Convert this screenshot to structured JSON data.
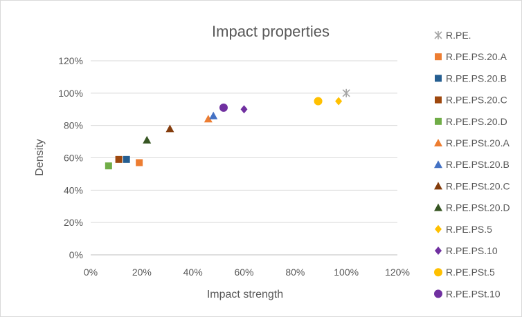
{
  "chart_data": {
    "type": "scatter",
    "title": "Impact properties",
    "xlabel": "Impact strength",
    "ylabel": "Density",
    "xlim": [
      0,
      1.2
    ],
    "ylim": [
      0,
      1.2
    ],
    "x_ticks": [
      "0%",
      "20%",
      "40%",
      "60%",
      "80%",
      "100%",
      "120%"
    ],
    "y_ticks": [
      "0%",
      "20%",
      "40%",
      "60%",
      "80%",
      "100%",
      "120%"
    ],
    "grid": "horizontal",
    "legend_position": "right",
    "series": [
      {
        "name": "R.PE.",
        "marker": "star",
        "color": "#a5a5a5",
        "points": [
          [
            1.0,
            1.0
          ]
        ]
      },
      {
        "name": "R.PE.PS.20.A",
        "marker": "square",
        "color": "#ed7d31",
        "points": [
          [
            0.19,
            0.57
          ]
        ]
      },
      {
        "name": "R.PE.PS.20.B",
        "marker": "square",
        "color": "#255e91",
        "points": [
          [
            0.14,
            0.59
          ]
        ]
      },
      {
        "name": "R.PE.PS.20.C",
        "marker": "square",
        "color": "#9e480e",
        "points": [
          [
            0.11,
            0.59
          ]
        ]
      },
      {
        "name": "R.PE.PS.20.D",
        "marker": "square",
        "color": "#70ad47",
        "points": [
          [
            0.07,
            0.55
          ]
        ]
      },
      {
        "name": "R.PE.PSt.20.A",
        "marker": "triangle",
        "color": "#ed7d31",
        "points": [
          [
            0.46,
            0.84
          ]
        ]
      },
      {
        "name": "R.PE.PSt.20.B",
        "marker": "triangle",
        "color": "#4472c4",
        "points": [
          [
            0.48,
            0.86
          ]
        ]
      },
      {
        "name": "R.PE.PSt.20.C",
        "marker": "triangle",
        "color": "#843c0c",
        "points": [
          [
            0.31,
            0.78
          ]
        ]
      },
      {
        "name": "R.PE.PSt.20.D",
        "marker": "triangle",
        "color": "#375623",
        "points": [
          [
            0.22,
            0.71
          ]
        ]
      },
      {
        "name": "R.PE.PS.5",
        "marker": "diamond",
        "color": "#ffc000",
        "points": [
          [
            0.97,
            0.95
          ]
        ]
      },
      {
        "name": "R.PE.PS.10",
        "marker": "diamond",
        "color": "#7030a0",
        "points": [
          [
            0.6,
            0.9
          ]
        ]
      },
      {
        "name": "R.PE.PSt.5",
        "marker": "circle",
        "color": "#ffc000",
        "points": [
          [
            0.89,
            0.95
          ]
        ]
      },
      {
        "name": "R.PE.PSt.10",
        "marker": "circle",
        "color": "#7030a0",
        "points": [
          [
            0.52,
            0.91
          ]
        ]
      }
    ]
  }
}
